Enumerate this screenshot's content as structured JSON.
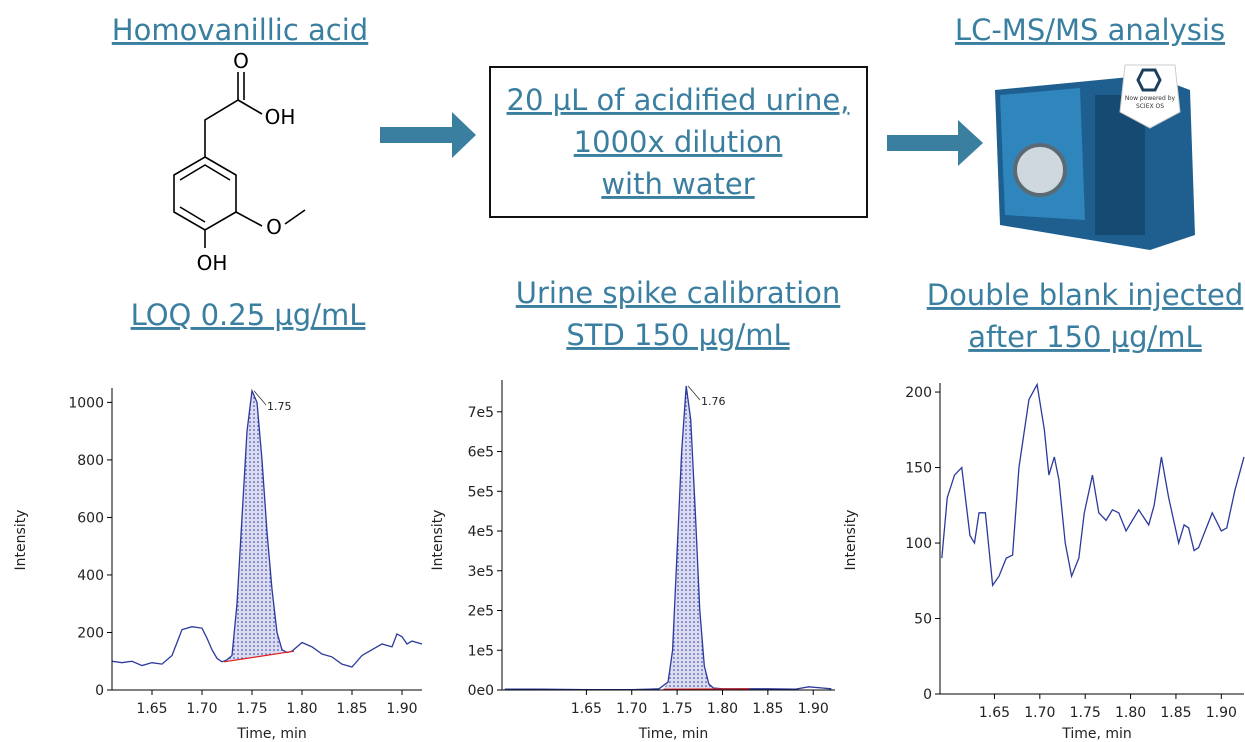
{
  "headers": {
    "left": "Homovanillic acid",
    "right": "LC-MS/MS analysis"
  },
  "molecule": {
    "labels": [
      "O",
      "OH",
      "O",
      "OH"
    ]
  },
  "box": [
    "20 µL of acidified urine,",
    " 1000x dilution",
    "with water"
  ],
  "instrument": {
    "badge": [
      "Now powered by",
      "SCIEX OS"
    ]
  },
  "panel_titles": [
    [
      "LOQ 0.25 µg/mL"
    ],
    [
      "Urine spike calibration",
      "STD 150 µg/mL"
    ],
    [
      "Double blank injected",
      "after 150 µg/mL"
    ]
  ],
  "chart_data": [
    {
      "type": "line",
      "ylabel": "Intensity",
      "xlabel": "Time, min",
      "color": "#2b3a9c",
      "x": [
        1.61,
        1.62,
        1.63,
        1.64,
        1.65,
        1.66,
        1.67,
        1.68,
        1.69,
        1.7,
        1.705,
        1.71,
        1.715,
        1.72,
        1.725,
        1.73,
        1.735,
        1.74,
        1.745,
        1.75,
        1.755,
        1.76,
        1.765,
        1.77,
        1.775,
        1.78,
        1.785,
        1.79,
        1.8,
        1.81,
        1.82,
        1.83,
        1.84,
        1.85,
        1.86,
        1.87,
        1.88,
        1.89,
        1.895,
        1.9,
        1.905,
        1.91,
        1.92
      ],
      "values": [
        100,
        95,
        100,
        85,
        95,
        90,
        120,
        210,
        220,
        215,
        180,
        140,
        110,
        98,
        105,
        120,
        300,
        600,
        900,
        1040,
        1000,
        800,
        550,
        350,
        200,
        140,
        130,
        135,
        165,
        150,
        125,
        115,
        90,
        80,
        120,
        140,
        160,
        150,
        195,
        185,
        160,
        170,
        160
      ],
      "xlim": [
        1.61,
        1.92
      ],
      "ylim": [
        0,
        1050
      ],
      "xticks": [
        1.65,
        {
          "value": 1.7,
          "label": "1.70"
        },
        1.75,
        {
          "value": 1.8,
          "label": "1.80"
        },
        1.85,
        {
          "value": 1.9,
          "label": "1.90"
        }
      ],
      "yticks": [
        0,
        200,
        400,
        600,
        800,
        1000
      ],
      "baseline": {
        "x": [
          1.722,
          1.792
        ],
        "y": [
          98,
          135
        ],
        "color": "#e02020"
      },
      "peak_label": {
        "text": "1.75",
        "x": 1.752,
        "y": 1040
      }
    },
    {
      "type": "line",
      "ylabel": "Intensity",
      "xlabel": "Time, min",
      "color": "#2b3a9c",
      "x": [
        1.56,
        1.6,
        1.65,
        1.7,
        1.72,
        1.73,
        1.74,
        1.745,
        1.75,
        1.755,
        1.76,
        1.765,
        1.77,
        1.775,
        1.78,
        1.785,
        1.79,
        1.8,
        1.85,
        1.88,
        1.895,
        1.91,
        1.92
      ],
      "values": [
        2000,
        2000,
        1000,
        1000,
        2000,
        3000,
        20000,
        100000,
        350000,
        600000,
        765000,
        680000,
        450000,
        200000,
        60000,
        15000,
        5000,
        3000,
        3000,
        2000,
        8000,
        5000,
        3000
      ],
      "xlim": [
        1.557,
        1.924
      ],
      "ylim": [
        0,
        780000
      ],
      "xticks": [
        1.65,
        {
          "value": 1.7,
          "label": "1.70"
        },
        1.75,
        {
          "value": 1.8,
          "label": "1.80"
        },
        1.85,
        {
          "value": 1.9,
          "label": "1.90"
        }
      ],
      "yticks": [
        {
          "value": 0,
          "label": "0e0"
        },
        {
          "value": 100000,
          "label": "1e5"
        },
        {
          "value": 200000,
          "label": "2e5"
        },
        {
          "value": 300000,
          "label": "3e5"
        },
        {
          "value": 400000,
          "label": "4e5"
        },
        {
          "value": 500000,
          "label": "5e5"
        },
        {
          "value": 600000,
          "label": "6e5"
        },
        {
          "value": 700000,
          "label": "7e5"
        }
      ],
      "baseline": {
        "x": [
          1.735,
          1.83
        ],
        "y": [
          2000,
          3000
        ],
        "color": "#e02020"
      },
      "peak_label": {
        "text": "1.76",
        "x": 1.762,
        "y": 765000
      }
    },
    {
      "type": "line",
      "ylabel": "Intensity",
      "xlabel": "Time, min",
      "color": "#2b3a9c",
      "x": [
        1.592,
        1.598,
        1.606,
        1.614,
        1.623,
        1.628,
        1.633,
        1.64,
        1.648,
        1.655,
        1.663,
        1.67,
        1.677,
        1.688,
        1.697,
        1.705,
        1.71,
        1.716,
        1.721,
        1.728,
        1.735,
        1.743,
        1.749,
        1.758,
        1.765,
        1.773,
        1.78,
        1.787,
        1.795,
        1.802,
        1.809,
        1.82,
        1.826,
        1.834,
        1.842,
        1.853,
        1.859,
        1.864,
        1.87,
        1.875,
        1.89,
        1.9,
        1.906,
        1.915,
        1.925
      ],
      "values": [
        90,
        130,
        145,
        150,
        105,
        100,
        120,
        120,
        72,
        78,
        90,
        92,
        150,
        195,
        205,
        175,
        145,
        157,
        142,
        100,
        78,
        90,
        120,
        145,
        120,
        115,
        122,
        120,
        108,
        115,
        122,
        112,
        125,
        157,
        130,
        100,
        112,
        110,
        95,
        97,
        120,
        108,
        110,
        135,
        157
      ],
      "xlim": [
        1.59,
        1.925
      ],
      "ylim": [
        0,
        206
      ],
      "xticks": [
        1.65,
        {
          "value": 1.7,
          "label": "1.70"
        },
        1.75,
        {
          "value": 1.8,
          "label": "1.80"
        },
        1.85,
        {
          "value": 1.9,
          "label": "1.90"
        }
      ],
      "yticks": [
        0,
        50,
        100,
        150,
        200
      ]
    }
  ]
}
